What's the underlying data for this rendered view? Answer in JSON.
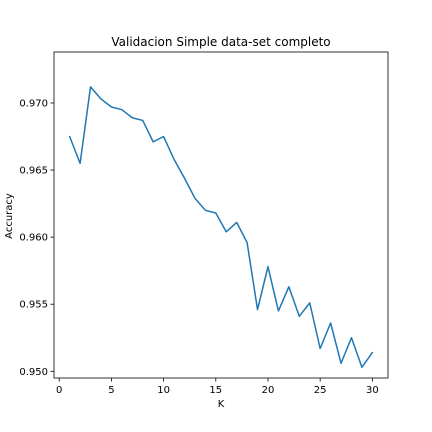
{
  "chart_data": {
    "type": "line",
    "title": "Validacion Simple data-set completo",
    "xlabel": "K",
    "ylabel": "Accuracy",
    "xlim": [
      -0.5,
      31.5
    ],
    "ylim": [
      0.9495,
      0.9738
    ],
    "x_ticks": [
      0,
      5,
      10,
      15,
      20,
      25,
      30
    ],
    "x_tick_labels": [
      "0",
      "5",
      "10",
      "15",
      "20",
      "25",
      "30"
    ],
    "y_ticks": [
      0.95,
      0.955,
      0.96,
      0.965,
      0.97
    ],
    "y_tick_labels": [
      "0.950",
      "0.955",
      "0.960",
      "0.965",
      "0.970"
    ],
    "grid": false,
    "series": [
      {
        "color": "#1f77b4",
        "x": [
          1,
          2,
          3,
          4,
          5,
          6,
          7,
          8,
          9,
          10,
          11,
          12,
          13,
          14,
          15,
          16,
          17,
          18,
          19,
          20,
          21,
          22,
          23,
          24,
          25,
          26,
          27,
          28,
          29,
          30
        ],
        "y": [
          0.9675,
          0.9655,
          0.9712,
          0.9703,
          0.9697,
          0.9695,
          0.9689,
          0.9687,
          0.9671,
          0.9675,
          0.9658,
          0.9644,
          0.9629,
          0.962,
          0.9618,
          0.9604,
          0.9611,
          0.9596,
          0.9546,
          0.9578,
          0.9545,
          0.9563,
          0.9541,
          0.9551,
          0.9517,
          0.9536,
          0.9506,
          0.9525,
          0.9503,
          0.9514
        ]
      }
    ]
  }
}
